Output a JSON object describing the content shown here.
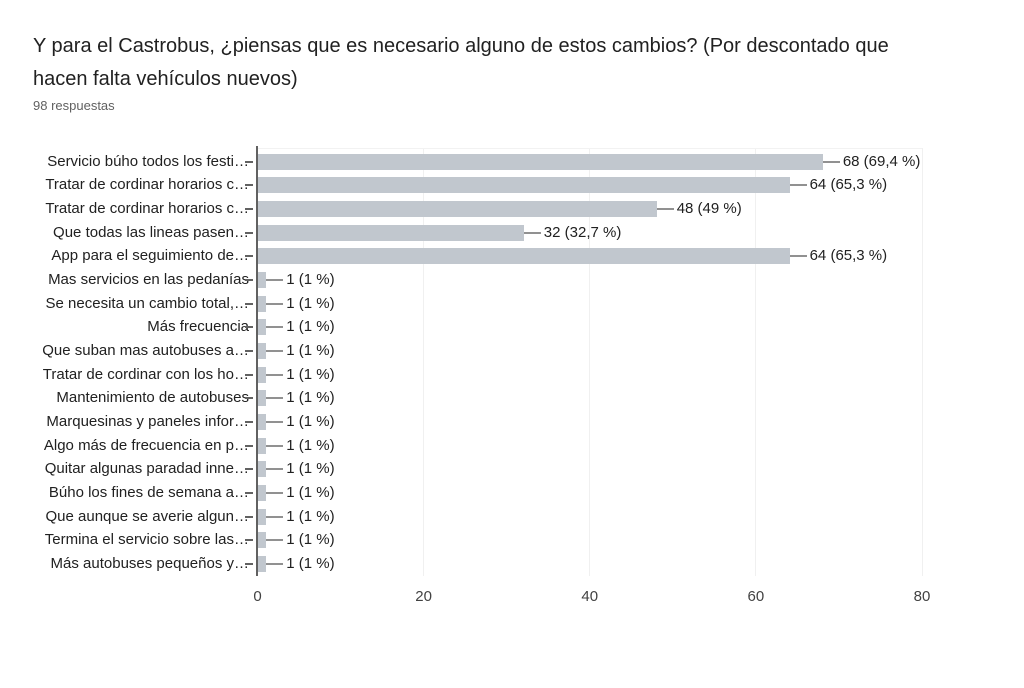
{
  "header": {
    "title": "Y para el Castrobus, ¿piensas que es necesario alguno de estos cambios? (Por descontado que hacen falta vehículos nuevos)",
    "title_lines": [
      "Y para el Castrobus, ¿piensas que es necesario alguno de estos cambios? (Por descontado que",
      "hacen falta vehículos nuevos)"
    ],
    "subtitle": "98 respuestas"
  },
  "chart_data": {
    "type": "bar",
    "orientation": "horizontal",
    "title": "Y para el Castrobus, ¿piensas que es necesario alguno de estos cambios? (Por descontado que hacen falta vehículos nuevos)",
    "subtitle": "98 respuestas",
    "categories": [
      "Servicio búho todos los festi…",
      "Tratar de cordinar horarios c…",
      "Tratar de cordinar horarios c…",
      "Que todas las lineas pasen…",
      "App para el seguimiento de…",
      "Mas servicios en las pedanías",
      "Se necesita un cambio total,…",
      "Más frecuencia",
      "Que suban mas autobuses a…",
      "Tratar de cordinar con los ho…",
      "Mantenimiento de autobuses",
      "Marquesinas y paneles infor…",
      "Algo más de frecuencia en p…",
      "Quitar algunas paradad inne…",
      "Búho los fines de semana a…",
      "Que aunque se averie algun…",
      "Termina el servicio sobre las…",
      "Más autobuses pequeños y…"
    ],
    "values": [
      68,
      64,
      48,
      32,
      64,
      1,
      1,
      1,
      1,
      1,
      1,
      1,
      1,
      1,
      1,
      1,
      1,
      1
    ],
    "value_labels": [
      "68 (69,4 %)",
      "64 (65,3 %)",
      "48 (49 %)",
      "32 (32,7 %)",
      "64 (65,3 %)",
      "1 (1 %)",
      "1 (1 %)",
      "1 (1 %)",
      "1 (1 %)",
      "1 (1 %)",
      "1 (1 %)",
      "1 (1 %)",
      "1 (1 %)",
      "1 (1 %)",
      "1 (1 %)",
      "1 (1 %)",
      "1 (1 %)",
      "1 (1 %)"
    ],
    "x_ticks": [
      0,
      20,
      40,
      60,
      80
    ],
    "xlim": [
      0,
      80
    ],
    "xlabel": "",
    "ylabel": "",
    "grid": true,
    "legend": "none",
    "bar_color": "#c1c7ce",
    "axis_color": "#616161",
    "gridline_color": "#f0f0f0",
    "leader_color": "#919191",
    "text_color": "#212121",
    "subtitle_color": "#616161"
  }
}
